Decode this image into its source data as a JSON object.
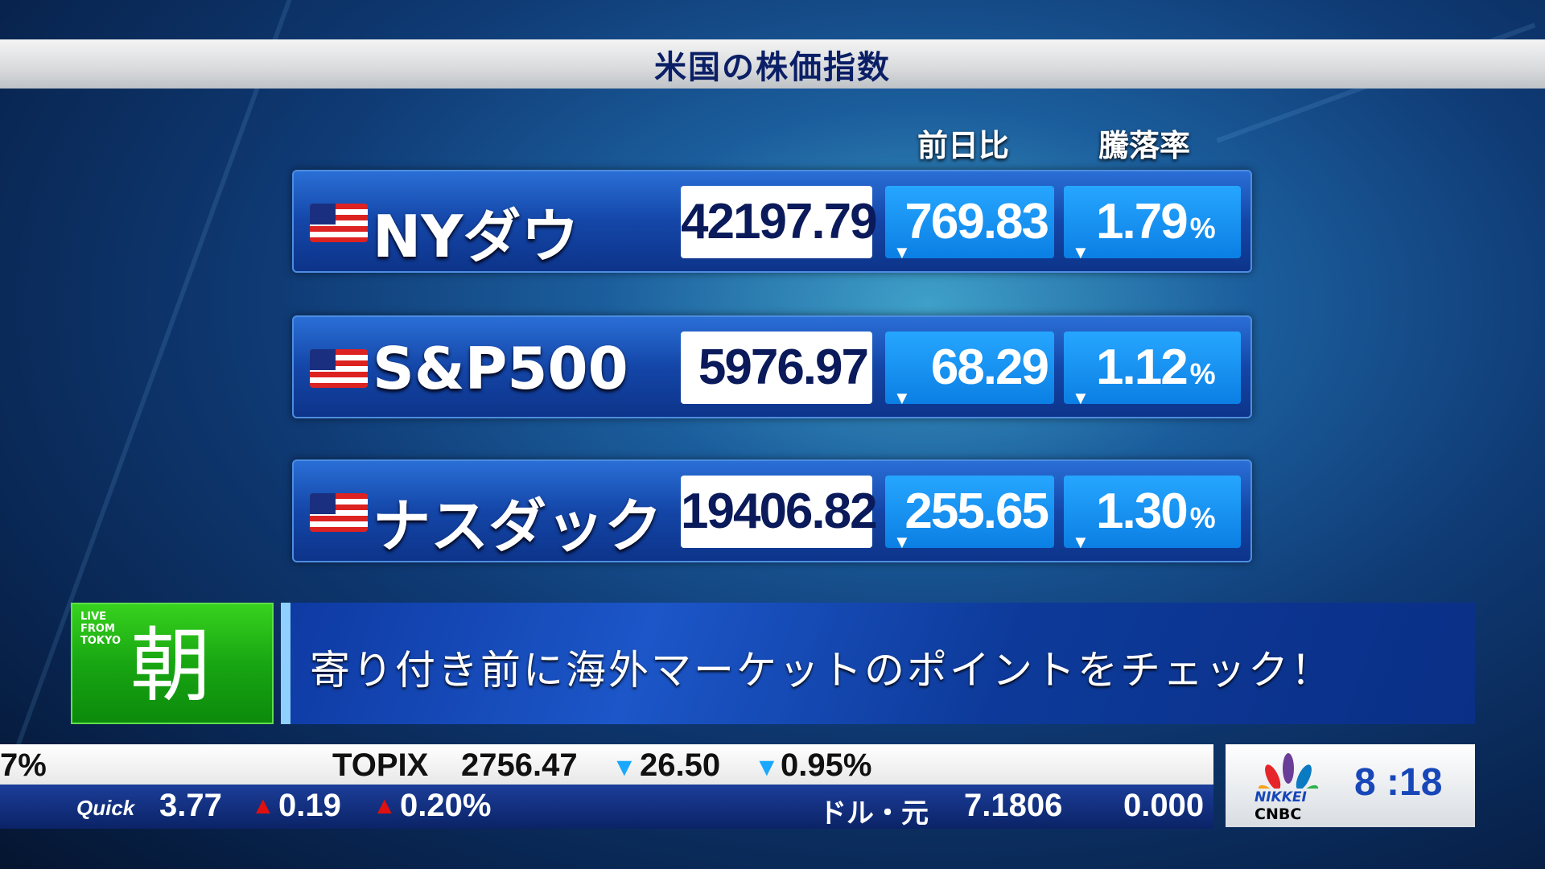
{
  "title": "米国の株価指数",
  "headers": {
    "change": "前日比",
    "pct": "騰落率"
  },
  "indices": [
    {
      "name": "NYダウ",
      "value": "42197.79",
      "change": "769.83",
      "pct": "1.79",
      "direction": "down"
    },
    {
      "name": "S&P500",
      "value": "5976.97",
      "change": "68.29",
      "pct": "1.12",
      "direction": "down"
    },
    {
      "name": "ナスダック",
      "value": "19406.82",
      "change": "255.65",
      "pct": "1.30",
      "direction": "down"
    }
  ],
  "pct_symbol": "%",
  "down_symbol": "▼",
  "up_symbol": "▲",
  "program": {
    "live": "LIVE\nFROM\nTOKYO",
    "live1": "LIVE",
    "live2": "FROM",
    "live3": "TOKYO",
    "badge": "朝",
    "headline": "寄り付き前に海外マーケットのポイントをチェック！"
  },
  "ticker_top": {
    "partial": "7%",
    "name": "TOPIX",
    "value": "2756.47",
    "change": "26.50",
    "pct": "0.95%"
  },
  "ticker_bottom": {
    "brand": "Quick",
    "value": "3.77",
    "change": "0.19",
    "pct": "0.20%",
    "fx_name": "ドル・元",
    "fx_value": "7.1806",
    "fx_change": "0.000"
  },
  "logo": {
    "line1": "NIKKEI",
    "line2": "CNBC"
  },
  "clock": "8 :18",
  "colors": {
    "accent_blue": "#1aa8ff",
    "down": "#1aa8ff",
    "up": "#e01010",
    "green": "#18a612",
    "navy": "#0b1f66"
  }
}
